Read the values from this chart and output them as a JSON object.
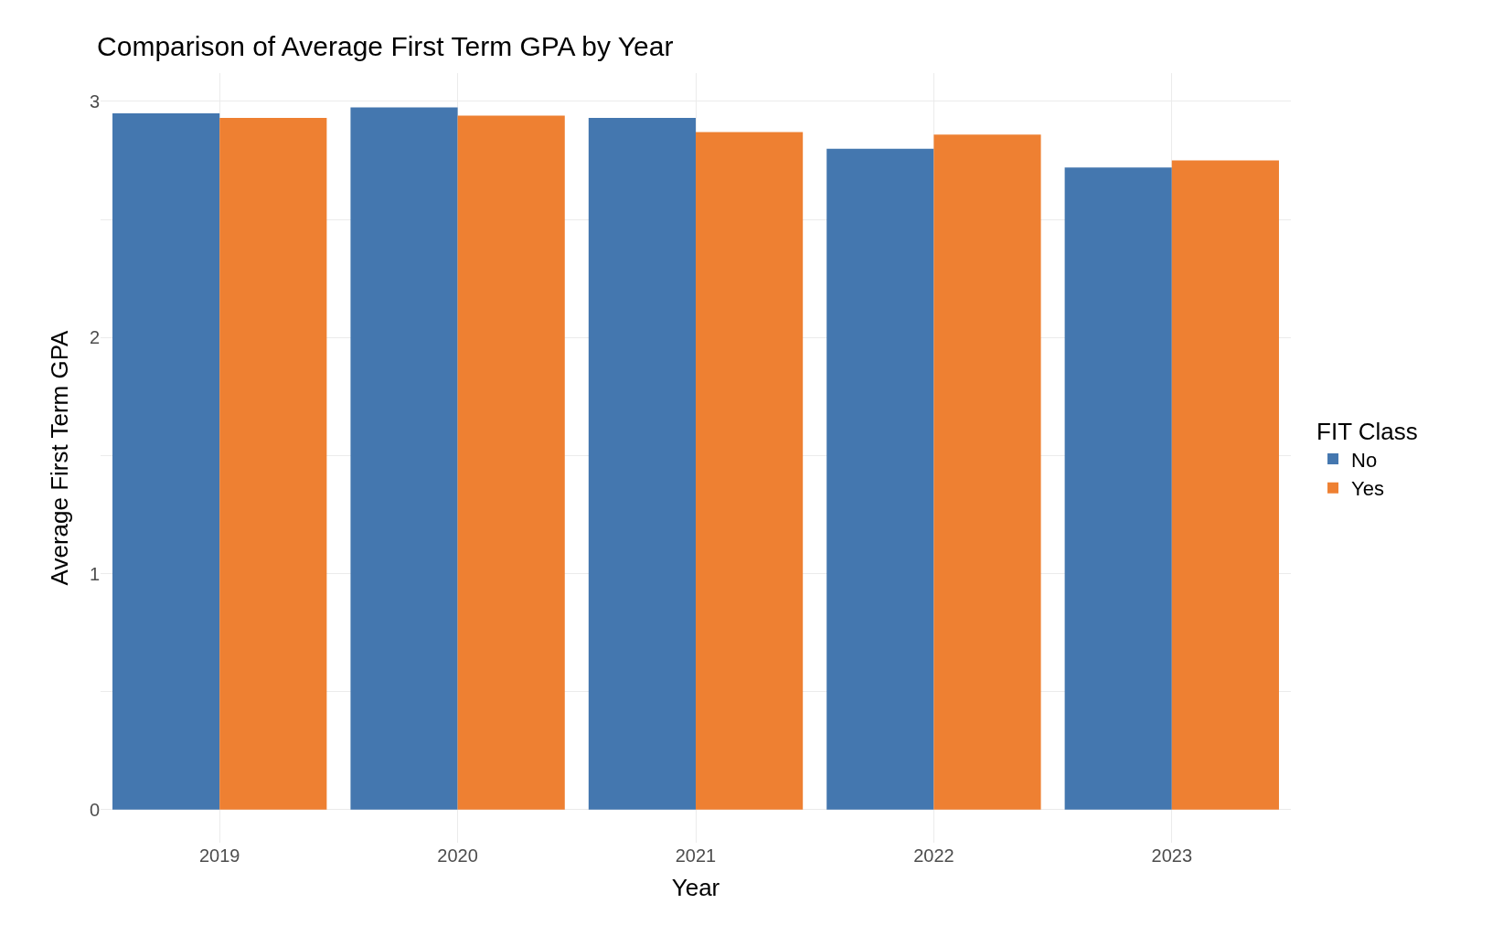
{
  "chart_data": {
    "type": "bar",
    "title": "Comparison of Average First Term GPA by Year",
    "xlabel": "Year",
    "ylabel": "Average First Term GPA",
    "legend_title": "FIT Class",
    "categories": [
      "2019",
      "2020",
      "2021",
      "2022",
      "2023"
    ],
    "series": [
      {
        "name": "No",
        "color": "#4477af",
        "values": [
          2.95,
          2.975,
          2.93,
          2.8,
          2.72
        ]
      },
      {
        "name": "Yes",
        "color": "#ee8032",
        "values": [
          2.93,
          2.94,
          2.87,
          2.86,
          2.75
        ]
      }
    ],
    "ylim": [
      -0.14,
      3.12
    ],
    "yticks": [
      0,
      {
        "value": 0.5,
        "label": null
      },
      1,
      {
        "value": 1.5,
        "label": null
      },
      2,
      {
        "value": 2.5,
        "label": null
      },
      3
    ],
    "grid": true,
    "legend": "right"
  }
}
